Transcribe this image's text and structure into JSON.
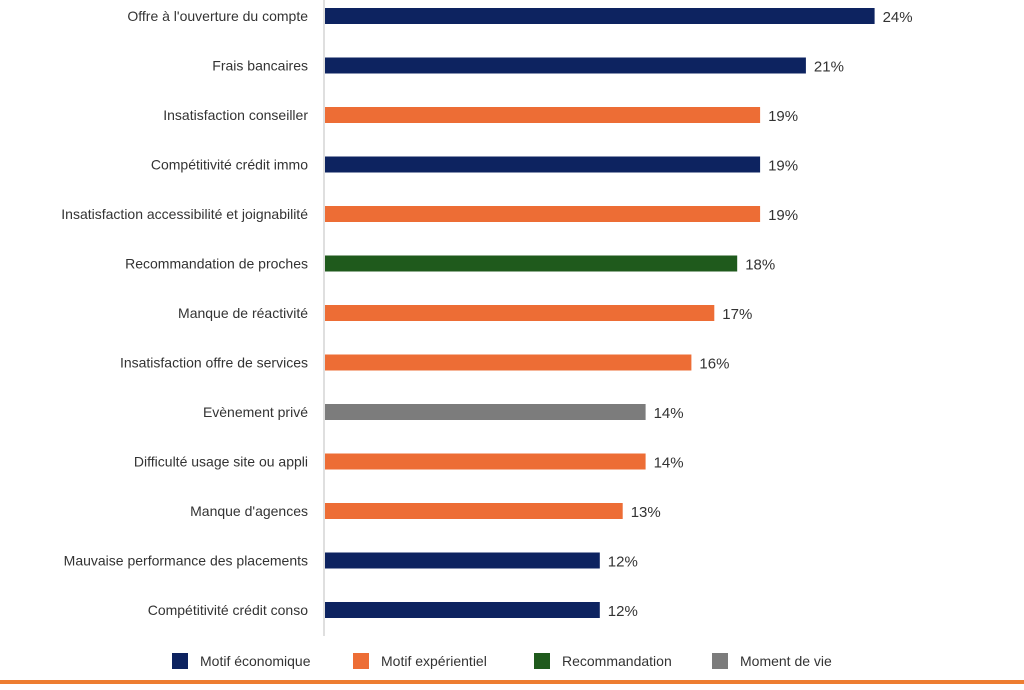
{
  "colors": {
    "economique": "#0d2360",
    "experientiel": "#ed6d35",
    "recommandation": "#1f5a1c",
    "moment_de_vie": "#7c7c7c",
    "axis": "#bfbfbf",
    "rule": "#ed7d31"
  },
  "chart_data": {
    "type": "bar",
    "orientation": "horizontal",
    "categories": [
      "Offre à l'ouverture du compte",
      "Frais bancaires",
      "Insatisfaction conseiller",
      "Compétitivité crédit immo",
      "Insatisfaction accessibilité et joignabilité",
      "Recommandation de proches",
      "Manque de réactivité",
      "Insatisfaction offre de services",
      "Evènement privé",
      "Difficulté usage site ou appli",
      "Manque d'agences",
      "Mauvaise performance des placements",
      "Compétitivité crédit conso"
    ],
    "values": [
      24,
      21,
      19,
      19,
      19,
      18,
      17,
      16,
      14,
      14,
      13,
      12,
      12
    ],
    "value_labels": [
      "24%",
      "21%",
      "19%",
      "19%",
      "19%",
      "18%",
      "17%",
      "16%",
      "14%",
      "14%",
      "13%",
      "12%",
      "12%"
    ],
    "groups": [
      "economique",
      "economique",
      "experientiel",
      "economique",
      "experientiel",
      "recommandation",
      "experientiel",
      "experientiel",
      "moment_de_vie",
      "experientiel",
      "experientiel",
      "economique",
      "economique"
    ],
    "legend": [
      {
        "key": "economique",
        "label": "Motif économique"
      },
      {
        "key": "experientiel",
        "label": "Motif expérientiel"
      },
      {
        "key": "recommandation",
        "label": "Recommandation"
      },
      {
        "key": "moment_de_vie",
        "label": "Moment de vie"
      }
    ],
    "legend_position": "bottom",
    "grid": false
  }
}
